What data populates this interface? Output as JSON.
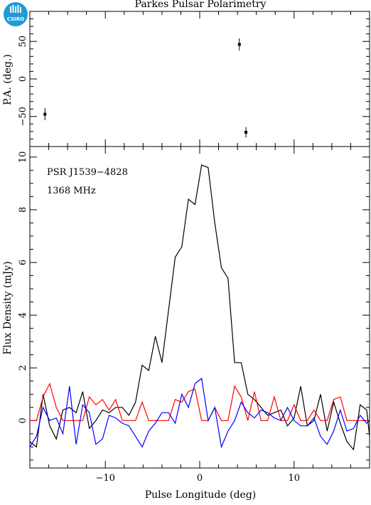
{
  "title": "Parkes Pulsar Polarimetry",
  "logo_text": "CSIRO",
  "chart_data": [
    {
      "type": "scatter",
      "panel": "position-angle",
      "ylabel": "P.A. (deg.)",
      "xlim": [
        -18,
        18
      ],
      "ylim": [
        -90,
        90
      ],
      "yticks": [
        -50,
        0,
        50
      ],
      "points": [
        {
          "x": -16.4,
          "y": -47,
          "err": 8
        },
        {
          "x": 4.2,
          "y": 46,
          "err": 8
        },
        {
          "x": 4.9,
          "y": -71,
          "err": 7
        }
      ]
    },
    {
      "type": "line",
      "panel": "profile",
      "ylabel": "Flux Density (mJy)",
      "xlabel": "Pulse Longitude (deg)",
      "xlim": [
        -18,
        18
      ],
      "ylim": [
        -1.8,
        10.4
      ],
      "xticks": [
        -10,
        0,
        10
      ],
      "yticks": [
        0,
        2,
        4,
        6,
        8,
        10
      ],
      "annotations": [
        "PSR J1539−4828",
        "1368 MHz"
      ],
      "x": [
        -18.0,
        -17.3,
        -16.6,
        -15.9,
        -15.2,
        -14.5,
        -13.8,
        -13.1,
        -12.4,
        -11.7,
        -11.0,
        -10.3,
        -9.6,
        -8.9,
        -8.2,
        -7.5,
        -6.8,
        -6.1,
        -5.4,
        -4.7,
        -4.0,
        -3.3,
        -2.6,
        -1.9,
        -1.2,
        -0.5,
        0.2,
        0.9,
        1.6,
        2.3,
        3.0,
        3.7,
        4.4,
        5.1,
        5.8,
        6.5,
        7.2,
        7.9,
        8.6,
        9.3,
        10.0,
        10.7,
        11.4,
        12.1,
        12.8,
        13.5,
        14.2,
        14.9,
        15.6,
        16.3,
        17.0,
        17.7,
        18.0
      ],
      "series": [
        {
          "color": "#000000",
          "values": [
            -0.8,
            -1.0,
            1.0,
            -0.2,
            -0.7,
            0.4,
            0.5,
            0.3,
            1.1,
            -0.3,
            0.0,
            0.4,
            0.3,
            0.5,
            0.5,
            0.2,
            0.7,
            2.1,
            1.9,
            3.2,
            2.2,
            4.2,
            6.2,
            6.6,
            8.4,
            8.2,
            9.7,
            9.6,
            7.5,
            5.8,
            5.4,
            2.2,
            2.2,
            1.0,
            0.8,
            0.5,
            0.2,
            0.3,
            0.4,
            -0.2,
            0.1,
            1.3,
            -0.2,
            0.0,
            1.0,
            -0.4,
            0.7,
            -0.1,
            -0.8,
            -1.1,
            0.6,
            0.4,
            -0.6
          ]
        },
        {
          "color": "#ff0000",
          "values": [
            0.0,
            0.0,
            0.9,
            1.4,
            0.5,
            0.0,
            0.0,
            0.0,
            0.0,
            0.9,
            0.6,
            0.8,
            0.4,
            0.8,
            0.0,
            0.0,
            0.0,
            0.7,
            0.0,
            0.0,
            0.0,
            0.0,
            0.8,
            0.7,
            1.1,
            1.2,
            0.0,
            0.0,
            0.5,
            0.0,
            0.0,
            1.3,
            0.9,
            0.0,
            1.1,
            0.0,
            0.0,
            0.9,
            0.0,
            0.0,
            0.6,
            0.0,
            0.0,
            0.4,
            0.0,
            0.0,
            0.8,
            0.9,
            0.0,
            0.0,
            0.0,
            0.0,
            0.0
          ]
        },
        {
          "color": "#0000ff",
          "values": [
            -1.0,
            -0.6,
            0.5,
            0.0,
            0.1,
            -0.5,
            1.3,
            -0.9,
            0.6,
            0.3,
            -0.9,
            -0.7,
            0.2,
            0.1,
            -0.1,
            -0.2,
            -0.6,
            -1.0,
            -0.4,
            -0.1,
            0.3,
            0.3,
            -0.1,
            1.0,
            0.5,
            1.4,
            1.6,
            0.0,
            0.5,
            -1.0,
            -0.4,
            0.0,
            0.7,
            0.3,
            0.1,
            0.4,
            0.3,
            0.1,
            0.0,
            0.5,
            0.0,
            -0.2,
            -0.2,
            0.1,
            -0.6,
            -0.9,
            -0.4,
            0.4,
            -0.4,
            -0.3,
            0.2,
            -0.1,
            0.0
          ]
        }
      ]
    }
  ]
}
